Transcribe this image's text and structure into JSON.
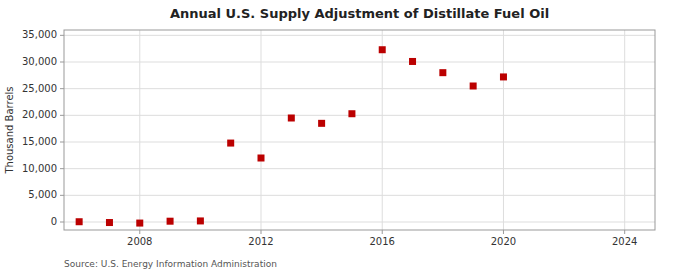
{
  "chart_data": {
    "type": "scatter",
    "title": "Annual U.S. Supply Adjustment of Distillate Fuel Oil",
    "ylabel": "Thousand Barrels",
    "annotations": [
      "Source: U.S. Energy Information Administration"
    ],
    "x": [
      2006,
      2007,
      2008,
      2009,
      2010,
      2011,
      2012,
      2013,
      2014,
      2015,
      2016,
      2017,
      2018,
      2019,
      2020
    ],
    "values": [
      50,
      -100,
      -200,
      150,
      200,
      14800,
      12000,
      19500,
      18500,
      20300,
      32300,
      30100,
      28000,
      25500,
      27200
    ],
    "color": "#bb0000",
    "marker": "square",
    "xlim": [
      2005.5,
      2025
    ],
    "ylim": [
      -1500,
      36000
    ],
    "xticks": [
      2008,
      2012,
      2016,
      2020,
      2024
    ],
    "yticks": [
      0,
      {
        "value": 5000,
        "label": "5,000"
      },
      {
        "value": 10000,
        "label": "10,000"
      },
      {
        "value": 15000,
        "label": "15,000"
      },
      {
        "value": 20000,
        "label": "20,000"
      },
      {
        "value": 25000,
        "label": "25,000"
      },
      {
        "value": 30000,
        "label": "30,000"
      },
      {
        "value": 35000,
        "label": "35,000"
      }
    ],
    "grid": true
  }
}
